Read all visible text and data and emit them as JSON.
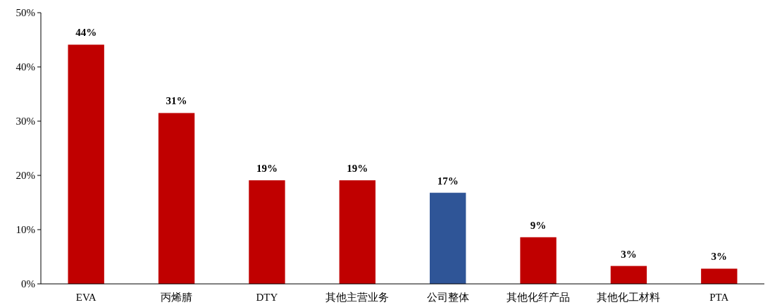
{
  "chart_data": {
    "type": "bar",
    "categories": [
      "EVA",
      "丙烯腈",
      "DTY",
      "其他主营业务",
      "公司整体",
      "其他化纤产品",
      "其他化工材料",
      "PTA"
    ],
    "values": [
      44.1,
      31.5,
      19.1,
      19.1,
      16.8,
      8.6,
      3.3,
      2.8
    ],
    "value_labels": [
      "44%",
      "31%",
      "19%",
      "19%",
      "17%",
      "9%",
      "3%",
      "3%"
    ],
    "colors": [
      "#c00000",
      "#c00000",
      "#c00000",
      "#c00000",
      "#2f5597",
      "#c00000",
      "#c00000",
      "#c00000"
    ],
    "ylim": [
      0,
      50
    ],
    "yticks": [
      {
        "value": 0,
        "label": "0%"
      },
      {
        "value": 10,
        "label": "10%"
      },
      {
        "value": 20,
        "label": "20%"
      },
      {
        "value": 30,
        "label": "30%"
      },
      {
        "value": 40,
        "label": "40%"
      },
      {
        "value": 50,
        "label": "50%"
      }
    ],
    "data_labels": false
  }
}
